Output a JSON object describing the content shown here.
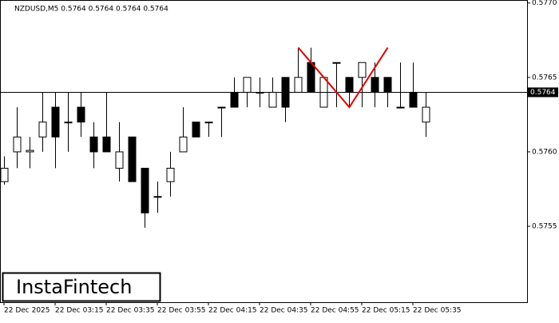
{
  "chart_data": {
    "type": "candlestick",
    "title": "NZDUSD,M5  0.5764 0.5764 0.5764 0.5764",
    "categories": [
      "22 Dec 2025",
      null,
      null,
      null,
      "22 Dec 03:15",
      null,
      null,
      null,
      "22 Dec 03:35",
      null,
      null,
      null,
      "22 Dec 03:55",
      null,
      null,
      null,
      "22 Dec 04:15",
      null,
      null,
      null,
      "22 Dec 04:35",
      null,
      null,
      null,
      "22 Dec 04:55",
      null,
      null,
      null,
      "22 Dec 05:15",
      null,
      null,
      null,
      "22 Dec 05:35",
      null
    ],
    "open": [
      0.5758,
      0.576,
      0.576,
      0.5761,
      0.5763,
      0.5762,
      0.5763,
      0.5761,
      0.5761,
      0.57589,
      0.5761,
      0.57589,
      0.5757,
      0.5758,
      0.576,
      0.5762,
      0.5762,
      0.5763,
      0.5764,
      0.5764,
      0.5764,
      0.5763,
      0.5765,
      0.5764,
      0.5766,
      0.5763,
      0.5766,
      0.5765,
      0.5765,
      0.5765,
      0.5765,
      0.5763,
      0.5764,
      0.5762
    ],
    "high": [
      0.57597,
      0.5763,
      0.5761,
      0.5764,
      0.5764,
      0.5764,
      0.5764,
      0.5762,
      0.5764,
      0.5762,
      0.5761,
      0.57589,
      0.5758,
      0.576,
      0.5763,
      0.5762,
      0.5762,
      0.5763,
      0.5765,
      0.5765,
      0.5765,
      0.5765,
      0.5765,
      0.5767,
      0.5767,
      0.5765,
      0.5766,
      0.5765,
      0.5766,
      0.5766,
      0.5765,
      0.5766,
      0.5766,
      0.5764
    ],
    "low": [
      0.57578,
      0.57589,
      0.57589,
      0.576,
      0.57589,
      0.576,
      0.5761,
      0.57589,
      0.576,
      0.5758,
      0.5758,
      0.57549,
      0.57559,
      0.5757,
      0.576,
      0.5761,
      0.5761,
      0.5761,
      0.5763,
      0.5763,
      0.5763,
      0.5763,
      0.5762,
      0.5764,
      0.5764,
      0.5763,
      0.5763,
      0.5763,
      0.5763,
      0.5763,
      0.5763,
      0.5763,
      0.5763,
      0.5761
    ],
    "close": [
      0.57589,
      0.5761,
      0.57601,
      0.5762,
      0.5761,
      0.5762,
      0.5762,
      0.576,
      0.576,
      0.576,
      0.5758,
      0.57559,
      0.5757,
      0.57589,
      0.5761,
      0.5761,
      0.5762,
      0.5763,
      0.5763,
      0.5765,
      0.5764,
      0.5764,
      0.5763,
      0.5765,
      0.5764,
      0.5765,
      0.5766,
      0.5764,
      0.5766,
      0.5764,
      0.5764,
      0.5763,
      0.5763,
      0.5763
    ],
    "ylim": [
      0.57499,
      0.57702
    ],
    "yticks": [
      0.5755,
      {
        "value": 0.576,
        "label": "0.5760"
      },
      0.5765,
      {
        "value": 0.577,
        "label": "0.5770"
      }
    ],
    "current_price": 0.5764,
    "pattern": {
      "color": "#e00000",
      "points": [
        {
          "x": 23,
          "y": 0.5767
        },
        {
          "x": 27,
          "y": 0.5763
        },
        {
          "x": 30,
          "y": 0.5767
        }
      ]
    },
    "watermark": "InstaFintech"
  }
}
